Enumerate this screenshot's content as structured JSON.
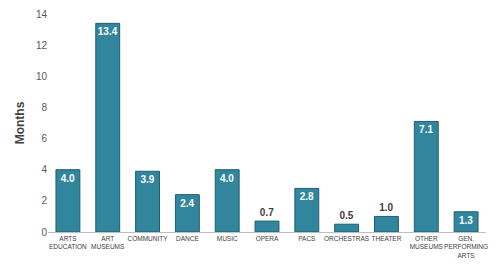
{
  "chart_data": {
    "type": "bar",
    "categories": [
      "ARTS EDUCATION",
      "ART MUSEUMS",
      "COMMUNITY",
      "DANCE",
      "MUSIC",
      "OPERA",
      "PACS",
      "ORCHESTRAS",
      "THEATER",
      "OTHER MUSEUMS",
      "GEN. PERFORMING ARTS"
    ],
    "values": [
      4.0,
      13.4,
      3.9,
      2.4,
      4.0,
      0.7,
      2.8,
      0.5,
      1.0,
      7.1,
      1.3
    ],
    "value_labels": [
      "4.0",
      "13.4",
      "3.9",
      "2.4",
      "4.0",
      "0.7",
      "2.8",
      "0.5",
      "1.0",
      "7.1",
      "1.3"
    ],
    "data_labels": true,
    "color": "#31859c",
    "y_label": "Months",
    "ylim": [
      0,
      14
    ],
    "yticks": [
      0,
      2,
      4,
      6,
      8,
      10,
      12,
      14
    ],
    "grid": false
  }
}
